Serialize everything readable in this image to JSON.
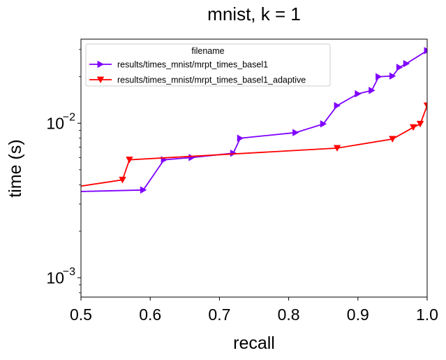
{
  "chart_data": {
    "type": "line",
    "title": "mnist, k = 1",
    "xlabel": "recall",
    "ylabel": "time (s)",
    "xlim": [
      0.5,
      1.0
    ],
    "ylim": [
      0.00075,
      0.035
    ],
    "yscale": "log",
    "x_ticks": [
      {
        "value": 0.5,
        "label": "0.5"
      },
      {
        "value": 0.6,
        "label": "0.6"
      },
      {
        "value": 0.7,
        "label": "0.7"
      },
      {
        "value": 0.8,
        "label": "0.8"
      },
      {
        "value": 0.9,
        "label": "0.9"
      },
      {
        "value": 1.0,
        "label": "1.0"
      }
    ],
    "y_major_ticks": [
      {
        "value": 0.001,
        "base": "10",
        "exp": "−3"
      },
      {
        "value": 0.01,
        "base": "10",
        "exp": "−2"
      }
    ],
    "y_minor_ticks": [
      0.0008,
      0.0009,
      0.002,
      0.003,
      0.004,
      0.005,
      0.006,
      0.007,
      0.008,
      0.009,
      0.02,
      0.03
    ],
    "grid": false,
    "legend": {
      "title": "filename",
      "placement": "top-left"
    },
    "series": [
      {
        "name": "results/times_mnist/mrpt_times_basel1",
        "color": "#7f00ff",
        "marker": "triangle-right",
        "x": [
          0.48,
          0.59,
          0.62,
          0.66,
          0.72,
          0.73,
          0.81,
          0.85,
          0.87,
          0.9,
          0.92,
          0.93,
          0.95,
          0.96,
          0.97,
          1.0
        ],
        "y": [
          0.0036,
          0.0037,
          0.0058,
          0.006,
          0.0064,
          0.008,
          0.0087,
          0.0099,
          0.013,
          0.0155,
          0.0163,
          0.02,
          0.0202,
          0.023,
          0.0243,
          0.0295
        ]
      },
      {
        "name": "results/times_mnist/mrpt_times_basel1_adaptive",
        "color": "#ff0000",
        "marker": "triangle-down",
        "x": [
          0.48,
          0.56,
          0.57,
          0.87,
          0.95,
          0.98,
          0.99,
          1.0
        ],
        "y": [
          0.0038,
          0.0043,
          0.0058,
          0.0069,
          0.0079,
          0.0094,
          0.0099,
          0.013
        ]
      }
    ]
  }
}
